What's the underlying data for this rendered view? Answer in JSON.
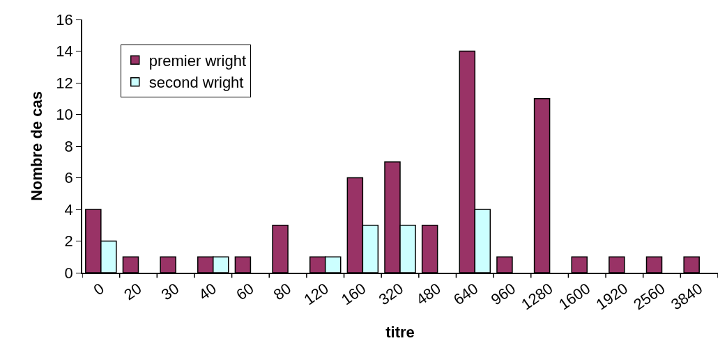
{
  "chart_data": {
    "type": "bar",
    "xlabel": "titre",
    "ylabel": "Nombre de cas",
    "categories": [
      "0",
      "20",
      "30",
      "40",
      "60",
      "80",
      "120",
      "160",
      "320",
      "480",
      "640",
      "960",
      "1280",
      "1600",
      "1920",
      "2560",
      "3840"
    ],
    "series": [
      {
        "name": "premier wright",
        "color": "#993366",
        "values": [
          4,
          1,
          1,
          1,
          1,
          3,
          1,
          6,
          7,
          3,
          14,
          1,
          11,
          1,
          1,
          1,
          1
        ]
      },
      {
        "name": "second wright",
        "color": "#ccffff",
        "values": [
          2,
          null,
          null,
          1,
          null,
          null,
          1,
          3,
          3,
          null,
          4,
          null,
          null,
          null,
          null,
          null,
          null
        ]
      }
    ],
    "ylim": [
      0,
      16
    ],
    "yticks": [
      0,
      2,
      4,
      6,
      8,
      10,
      12,
      14,
      16
    ],
    "grid": false,
    "legend": "top left"
  }
}
